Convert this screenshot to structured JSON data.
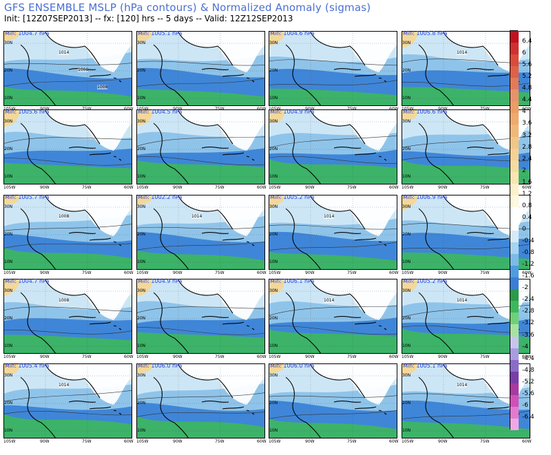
{
  "header": {
    "title": "GFS ENSEMBLE MSLP (hPa contours) & Normalized Anomaly (sigmas)",
    "subtitle": "Init: [12Z07SEP2013] -- fx: [120] hrs -- 5 days -- Valid: 12Z12SEP2013"
  },
  "axes": {
    "x_ticks": [
      "105W",
      "90W",
      "75W",
      "60W"
    ],
    "y_ticks": [
      "30N",
      "20N",
      "10N"
    ]
  },
  "panels": [
    {
      "min": "Min: 1004.7 hPa",
      "contours": [
        "1014",
        "1008",
        "1008"
      ]
    },
    {
      "min": "Min: 1005.1 hPa",
      "contours": []
    },
    {
      "min": "Min: 1004.6 hPa",
      "contours": []
    },
    {
      "min": "Min: 1005.8 hPa",
      "contours": [
        "1014"
      ]
    },
    {
      "min": "Min: 1005.6 hPa",
      "contours": []
    },
    {
      "min": "Min: 1004.5 hPa",
      "contours": []
    },
    {
      "min": "Min: 1004.9 hPa",
      "contours": []
    },
    {
      "min": "Min: 1006.6 hPa",
      "contours": []
    },
    {
      "min": "Min: 1005.7 hPa",
      "contours": [
        "1008"
      ]
    },
    {
      "min": "Min: 1002.2 hPa",
      "contours": [
        "1014"
      ]
    },
    {
      "min": "Min: 1005.2 hPa",
      "contours": [
        "1014"
      ]
    },
    {
      "min": "Min: 1006.9 hPa",
      "contours": []
    },
    {
      "min": "Min: 1004.7 hPa",
      "contours": [
        "1008"
      ]
    },
    {
      "min": "Min: 1004.9 hPa",
      "contours": []
    },
    {
      "min": "Min: 1006.1 hPa",
      "contours": [
        "1014"
      ]
    },
    {
      "min": "Min: 1005.2 hPa",
      "contours": [
        "1014"
      ]
    },
    {
      "min": "Min: 1005.4 hPa",
      "contours": [
        "1014"
      ]
    },
    {
      "min": "Min: 1006.0 hPa",
      "contours": []
    },
    {
      "min": "Min: 1006.0 hPa",
      "contours": []
    },
    {
      "min": "Min: 1005.1 hPa",
      "contours": [
        "1014"
      ]
    }
  ],
  "colorbar": {
    "labels": [
      "6.4",
      "6",
      "5.6",
      "5.2",
      "4.8",
      "4.4",
      "4",
      "3.6",
      "3.2",
      "2.8",
      "2.4",
      "2",
      "1.6",
      "1.2",
      "0.8",
      "0.4",
      "0",
      "-0.4",
      "-0.8",
      "-1.2",
      "-1.6",
      "-2",
      "-2.4",
      "-2.8",
      "-3.2",
      "-3.6",
      "-4",
      "-4.4",
      "-4.8",
      "-5.2",
      "-5.6",
      "-6",
      "-6.4"
    ],
    "colors": [
      "#c1121f",
      "#d03030",
      "#dc4a3a",
      "#e06048",
      "#e47a58",
      "#e8926a",
      "#ec9c64",
      "#efaa6c",
      "#f1b878",
      "#f2c686",
      "#f3d294",
      "#f5dca2",
      "#f7e6b4",
      "#fbf1cc",
      "#fdf8e0",
      "#ffffff",
      "#ffffff",
      "#d6eaf6",
      "#a8d4ef",
      "#7cbbe8",
      "#4f9ce0",
      "#3a7ed8",
      "#2b9a4a",
      "#3cb85c",
      "#6fd07a",
      "#a6e3a0",
      "#c9c4ee",
      "#aa9ce0",
      "#8a6cc8",
      "#7a3ea8",
      "#a83aa0",
      "#d050b8",
      "#e37ad0",
      "#f0a8e4"
    ]
  },
  "colors": {
    "title": "#4a6fd0",
    "min_label": "#2a3fd6",
    "land": "#ffffff",
    "ocean_light": "#cde6f6",
    "ocean_mid": "#8fc4ea",
    "ocean_deep": "#3f86d8",
    "green": "#3cb85c",
    "yellow": "#f3d89a"
  }
}
